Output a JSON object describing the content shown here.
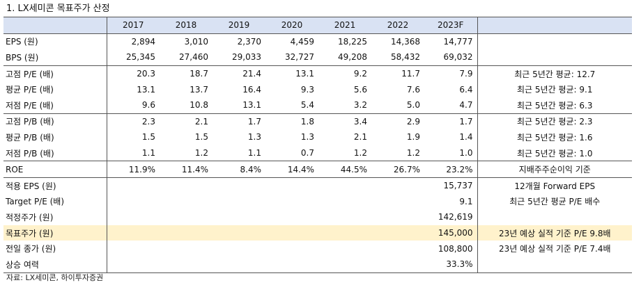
{
  "title": "1. LX세미콘 목표주가 산정",
  "years": [
    "2017",
    "2018",
    "2019",
    "2020",
    "2021",
    "2022",
    "2023F"
  ],
  "rows": [
    {
      "label": "EPS (원)",
      "values": [
        "2,894",
        "3,010",
        "2,370",
        "4,459",
        "18,225",
        "14,368",
        "14,777"
      ],
      "note": ""
    },
    {
      "label": "BPS (원)",
      "values": [
        "25,345",
        "27,460",
        "29,033",
        "32,727",
        "49,208",
        "58,432",
        "69,032"
      ],
      "note": ""
    },
    {
      "label": "고점 P/E (배)",
      "values": [
        "20.3",
        "18.7",
        "21.4",
        "13.1",
        "9.2",
        "11.7",
        "7.9"
      ],
      "note": "최근 5년간 평균: 12.7"
    },
    {
      "label": "평균 P/E (배)",
      "values": [
        "13.1",
        "13.7",
        "16.4",
        "9.3",
        "5.6",
        "7.6",
        "6.4"
      ],
      "note": "최근 5년간 평균: 9.1"
    },
    {
      "label": "저점 P/E (배)",
      "values": [
        "9.6",
        "10.8",
        "13.1",
        "5.4",
        "3.2",
        "5.0",
        "4.7"
      ],
      "note": "최근 5년간 평균: 6.3"
    },
    {
      "label": "고점 P/B (배)",
      "values": [
        "2.3",
        "2.1",
        "1.7",
        "1.8",
        "3.4",
        "2.9",
        "1.7"
      ],
      "note": "최근 5년간 평균: 2.3"
    },
    {
      "label": "평균 P/B (배)",
      "values": [
        "1.5",
        "1.5",
        "1.3",
        "1.3",
        "2.1",
        "1.9",
        "1.4"
      ],
      "note": "최근 5년간 평균: 1.6"
    },
    {
      "label": "저점 P/B (배)",
      "values": [
        "1.1",
        "1.2",
        "1.1",
        "0.7",
        "1.2",
        "1.2",
        "1.0"
      ],
      "note": "최근 5년간 평균: 1.0"
    },
    {
      "label": "ROE",
      "values": [
        "11.9%",
        "11.4%",
        "8.4%",
        "14.4%",
        "44.5%",
        "26.7%",
        "23.2%"
      ],
      "note": "지배주주순이익 기준"
    },
    {
      "label": "적용 EPS (원)",
      "values": [
        "",
        "",
        "",
        "",
        "",
        "",
        "15,737"
      ],
      "note": "12개월 Forward EPS"
    },
    {
      "label": "Target P/E (배)",
      "values": [
        "",
        "",
        "",
        "",
        "",
        "",
        "9.1"
      ],
      "note": "최근 5년간 평균 P/E 배수"
    },
    {
      "label": "적정주가 (원)",
      "values": [
        "",
        "",
        "",
        "",
        "",
        "",
        "142,619"
      ],
      "note": ""
    },
    {
      "label": "목표주가 (원)",
      "values": [
        "",
        "",
        "",
        "",
        "",
        "",
        "145,000"
      ],
      "note": "23년 예상 실적 기준 P/E 9.8배"
    },
    {
      "label": "전일 종가 (원)",
      "values": [
        "",
        "",
        "",
        "",
        "",
        "",
        "108,800"
      ],
      "note": "23년 예상 실적 기준 P/E 7.4배"
    },
    {
      "label": "상승 여력",
      "values": [
        "",
        "",
        "",
        "",
        "",
        "",
        "33.3%"
      ],
      "note": ""
    }
  ],
  "source": "자료: LX세미콘, 하이투자증권"
}
